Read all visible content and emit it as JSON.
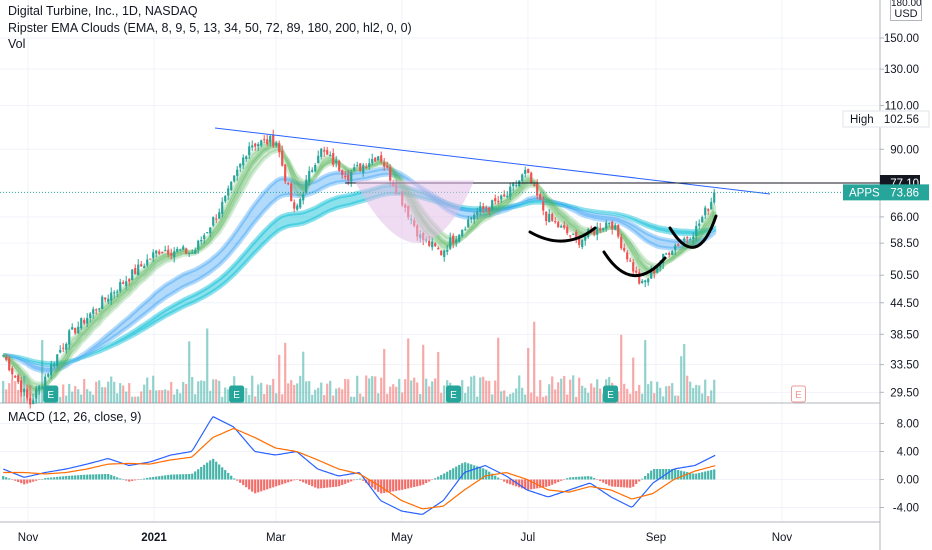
{
  "header": {
    "symbol_line": "Digital Turbine, Inc., 1D, NASDAQ",
    "indicator_line": "Ripster EMA Clouds (EMA, 8, 9, 5, 13, 34, 50, 72, 89, 180, 200, hl2, 0, 0)",
    "volume_label": "Vol",
    "currency": "USD",
    "currency_top_tick": "180.00"
  },
  "macd": {
    "label": "MACD (12, 26, close, 9)",
    "ticks": [
      "8.00",
      "4.00",
      "0.00",
      "-4.00"
    ]
  },
  "x_axis": {
    "labels": [
      "Nov",
      "2021",
      "Mar",
      "May",
      "Jul",
      "Sep",
      "Nov"
    ]
  },
  "price_badges": {
    "high_label": "High",
    "high_value": "102.56",
    "last_value_top": "77.10",
    "symbol_label": "APPS",
    "symbol_value": "73.86"
  },
  "colors": {
    "up": "#26a69a",
    "down": "#ef5350",
    "trendline": "#2962ff",
    "macd_line": "#2962ff",
    "signal_line": "#ff6d00",
    "cloud_fast": "#4caf50",
    "cloud_mid": "#2196f3",
    "cloud_slow": "#00bcd4",
    "earnings": "#26a69a"
  },
  "chart_data": [
    {
      "type": "candlestick",
      "title": "Digital Turbine, Inc., 1D, NASDAQ",
      "y_scale": "log",
      "ylim": [
        27,
        180
      ],
      "y_ticks": [
        "180.00",
        "150.00",
        "130.00",
        "110.00",
        "90.00",
        "66.00",
        "58.50",
        "50.50",
        "44.50",
        "38.50",
        "33.50",
        "29.50"
      ],
      "x_labels": [
        "Nov",
        "2021",
        "Mar",
        "May",
        "Jul",
        "Sep",
        "Nov"
      ],
      "close_path_approx": [
        {
          "x": "2020-10-20",
          "y": 35
        },
        {
          "x": "2020-11-02",
          "y": 28
        },
        {
          "x": "2020-11-20",
          "y": 38
        },
        {
          "x": "2020-12-10",
          "y": 46
        },
        {
          "x": "2021-01-04",
          "y": 57
        },
        {
          "x": "2021-01-20",
          "y": 56
        },
        {
          "x": "2021-02-05",
          "y": 72
        },
        {
          "x": "2021-02-16",
          "y": 92
        },
        {
          "x": "2021-03-01",
          "y": 94
        },
        {
          "x": "2021-03-10",
          "y": 67
        },
        {
          "x": "2021-03-22",
          "y": 90
        },
        {
          "x": "2021-04-05",
          "y": 80
        },
        {
          "x": "2021-04-20",
          "y": 88
        },
        {
          "x": "2021-05-10",
          "y": 60
        },
        {
          "x": "2021-05-20",
          "y": 56
        },
        {
          "x": "2021-06-05",
          "y": 67
        },
        {
          "x": "2021-06-20",
          "y": 72
        },
        {
          "x": "2021-06-30",
          "y": 81
        },
        {
          "x": "2021-07-10",
          "y": 66
        },
        {
          "x": "2021-07-25",
          "y": 59
        },
        {
          "x": "2021-08-10",
          "y": 65
        },
        {
          "x": "2021-08-25",
          "y": 48
        },
        {
          "x": "2021-09-08",
          "y": 57
        },
        {
          "x": "2021-09-20",
          "y": 62
        },
        {
          "x": "2021-09-30",
          "y": 73.86
        }
      ],
      "annotations": {
        "high": 102.56,
        "resistance_level": 77.1,
        "last_close": 73.86
      },
      "earnings_markers": [
        "2020-11-12",
        "2021-02-10",
        "2021-05-26",
        "2021-08-10",
        "2021-11-09"
      ]
    },
    {
      "type": "line",
      "title": "MACD (12, 26, close, 9)",
      "ylim": [
        -6,
        10
      ],
      "y_ticks": [
        8,
        4,
        0,
        -4
      ],
      "series": [
        {
          "name": "MACD",
          "values": [
            1.5,
            0.3,
            1.0,
            1.5,
            2.2,
            3.0,
            2.0,
            2.5,
            3.5,
            4.0,
            9.0,
            7.5,
            4.0,
            3.5,
            4.0,
            1.5,
            0.5,
            1.0,
            -3.0,
            -4.5,
            -5.0,
            -3.0,
            1.0,
            2.0,
            0.5,
            -1.5,
            -2.5,
            -1.5,
            -0.5,
            -2.5,
            -4.0,
            -0.5,
            1.5,
            2.0,
            3.5
          ]
        },
        {
          "name": "Signal",
          "values": [
            1.0,
            1.0,
            0.8,
            1.0,
            1.5,
            2.2,
            2.3,
            2.2,
            2.8,
            3.2,
            6.0,
            7.3,
            6.0,
            4.5,
            4.0,
            2.8,
            1.5,
            0.8,
            -1.0,
            -3.0,
            -4.2,
            -3.8,
            -1.5,
            0.5,
            1.0,
            0.0,
            -1.5,
            -1.8,
            -1.0,
            -1.5,
            -2.8,
            -2.0,
            0.0,
            1.2,
            2.0
          ]
        }
      ]
    }
  ]
}
